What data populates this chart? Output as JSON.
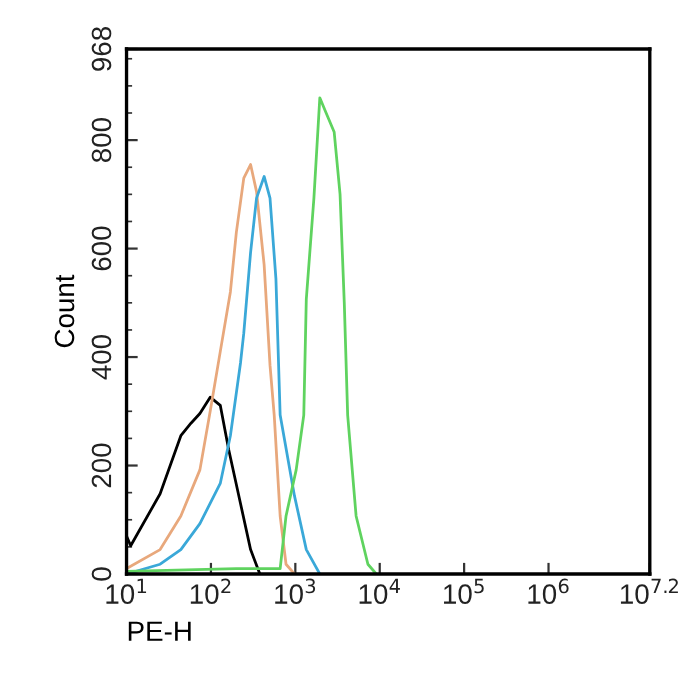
{
  "chart_data": {
    "type": "line",
    "xlabel": "PE-H",
    "ylabel": "Count",
    "log": "x",
    "xlim": [
      10,
      15848932
    ],
    "xticks": [
      {
        "value": 10,
        "label": "10$^{1}$"
      },
      {
        "value": 100,
        "label": "10$^{2}$"
      },
      {
        "value": 1000,
        "label": "10$^{3}$"
      },
      {
        "value": 10000,
        "label": "10$^{4}$"
      },
      {
        "value": 100000,
        "label": "10$^{5}$"
      },
      {
        "value": 1000000,
        "label": "10$^{6}$"
      },
      {
        "value": 15848932,
        "label": "10$^{7.2}$"
      }
    ],
    "ylim": [
      0,
      968
    ],
    "yticks": [
      0,
      200,
      400,
      600,
      800,
      968
    ],
    "grid": false,
    "legend": false,
    "marker": "none",
    "line_style": "solid",
    "series": [
      {
        "color": "#000000",
        "x": [
          10,
          11.2,
          25,
          44,
          58,
          74,
          98,
          129,
          162,
          224,
          295,
          380
        ],
        "values": [
          70,
          52,
          148,
          255,
          278,
          296,
          326,
          311,
          230,
          130,
          45,
          0
        ]
      },
      {
        "color": "#e8a87c",
        "x": [
          10,
          25,
          44,
          74,
          98,
          129,
          170,
          200,
          245,
          295,
          347,
          427,
          501,
          562,
          661,
          776,
          977
        ],
        "values": [
          10,
          45,
          107,
          192,
          300,
          410,
          520,
          630,
          730,
          755,
          705,
          570,
          385,
          293,
          107,
          18,
          0
        ]
      },
      {
        "color": "#3aa8d8",
        "x": [
          10,
          25,
          44,
          74,
          129,
          170,
          224,
          245,
          295,
          347,
          427,
          501,
          589,
          661,
          977,
          1349,
          1950
        ],
        "values": [
          0,
          18,
          45,
          93,
          167,
          255,
          389,
          444,
          593,
          693,
          733,
          693,
          544,
          293,
          144,
          45,
          0
        ]
      },
      {
        "color": "#5fd35f",
        "x": [
          10,
          200,
          661,
          776,
          1023,
          1259,
          1349,
          1660,
          1950,
          2291,
          2884,
          3388,
          3802,
          4169,
          5248,
          7244,
          9120
        ],
        "values": [
          5,
          10,
          10,
          107,
          192,
          293,
          507,
          693,
          878,
          852,
          815,
          700,
          500,
          293,
          107,
          18,
          0
        ]
      }
    ]
  }
}
